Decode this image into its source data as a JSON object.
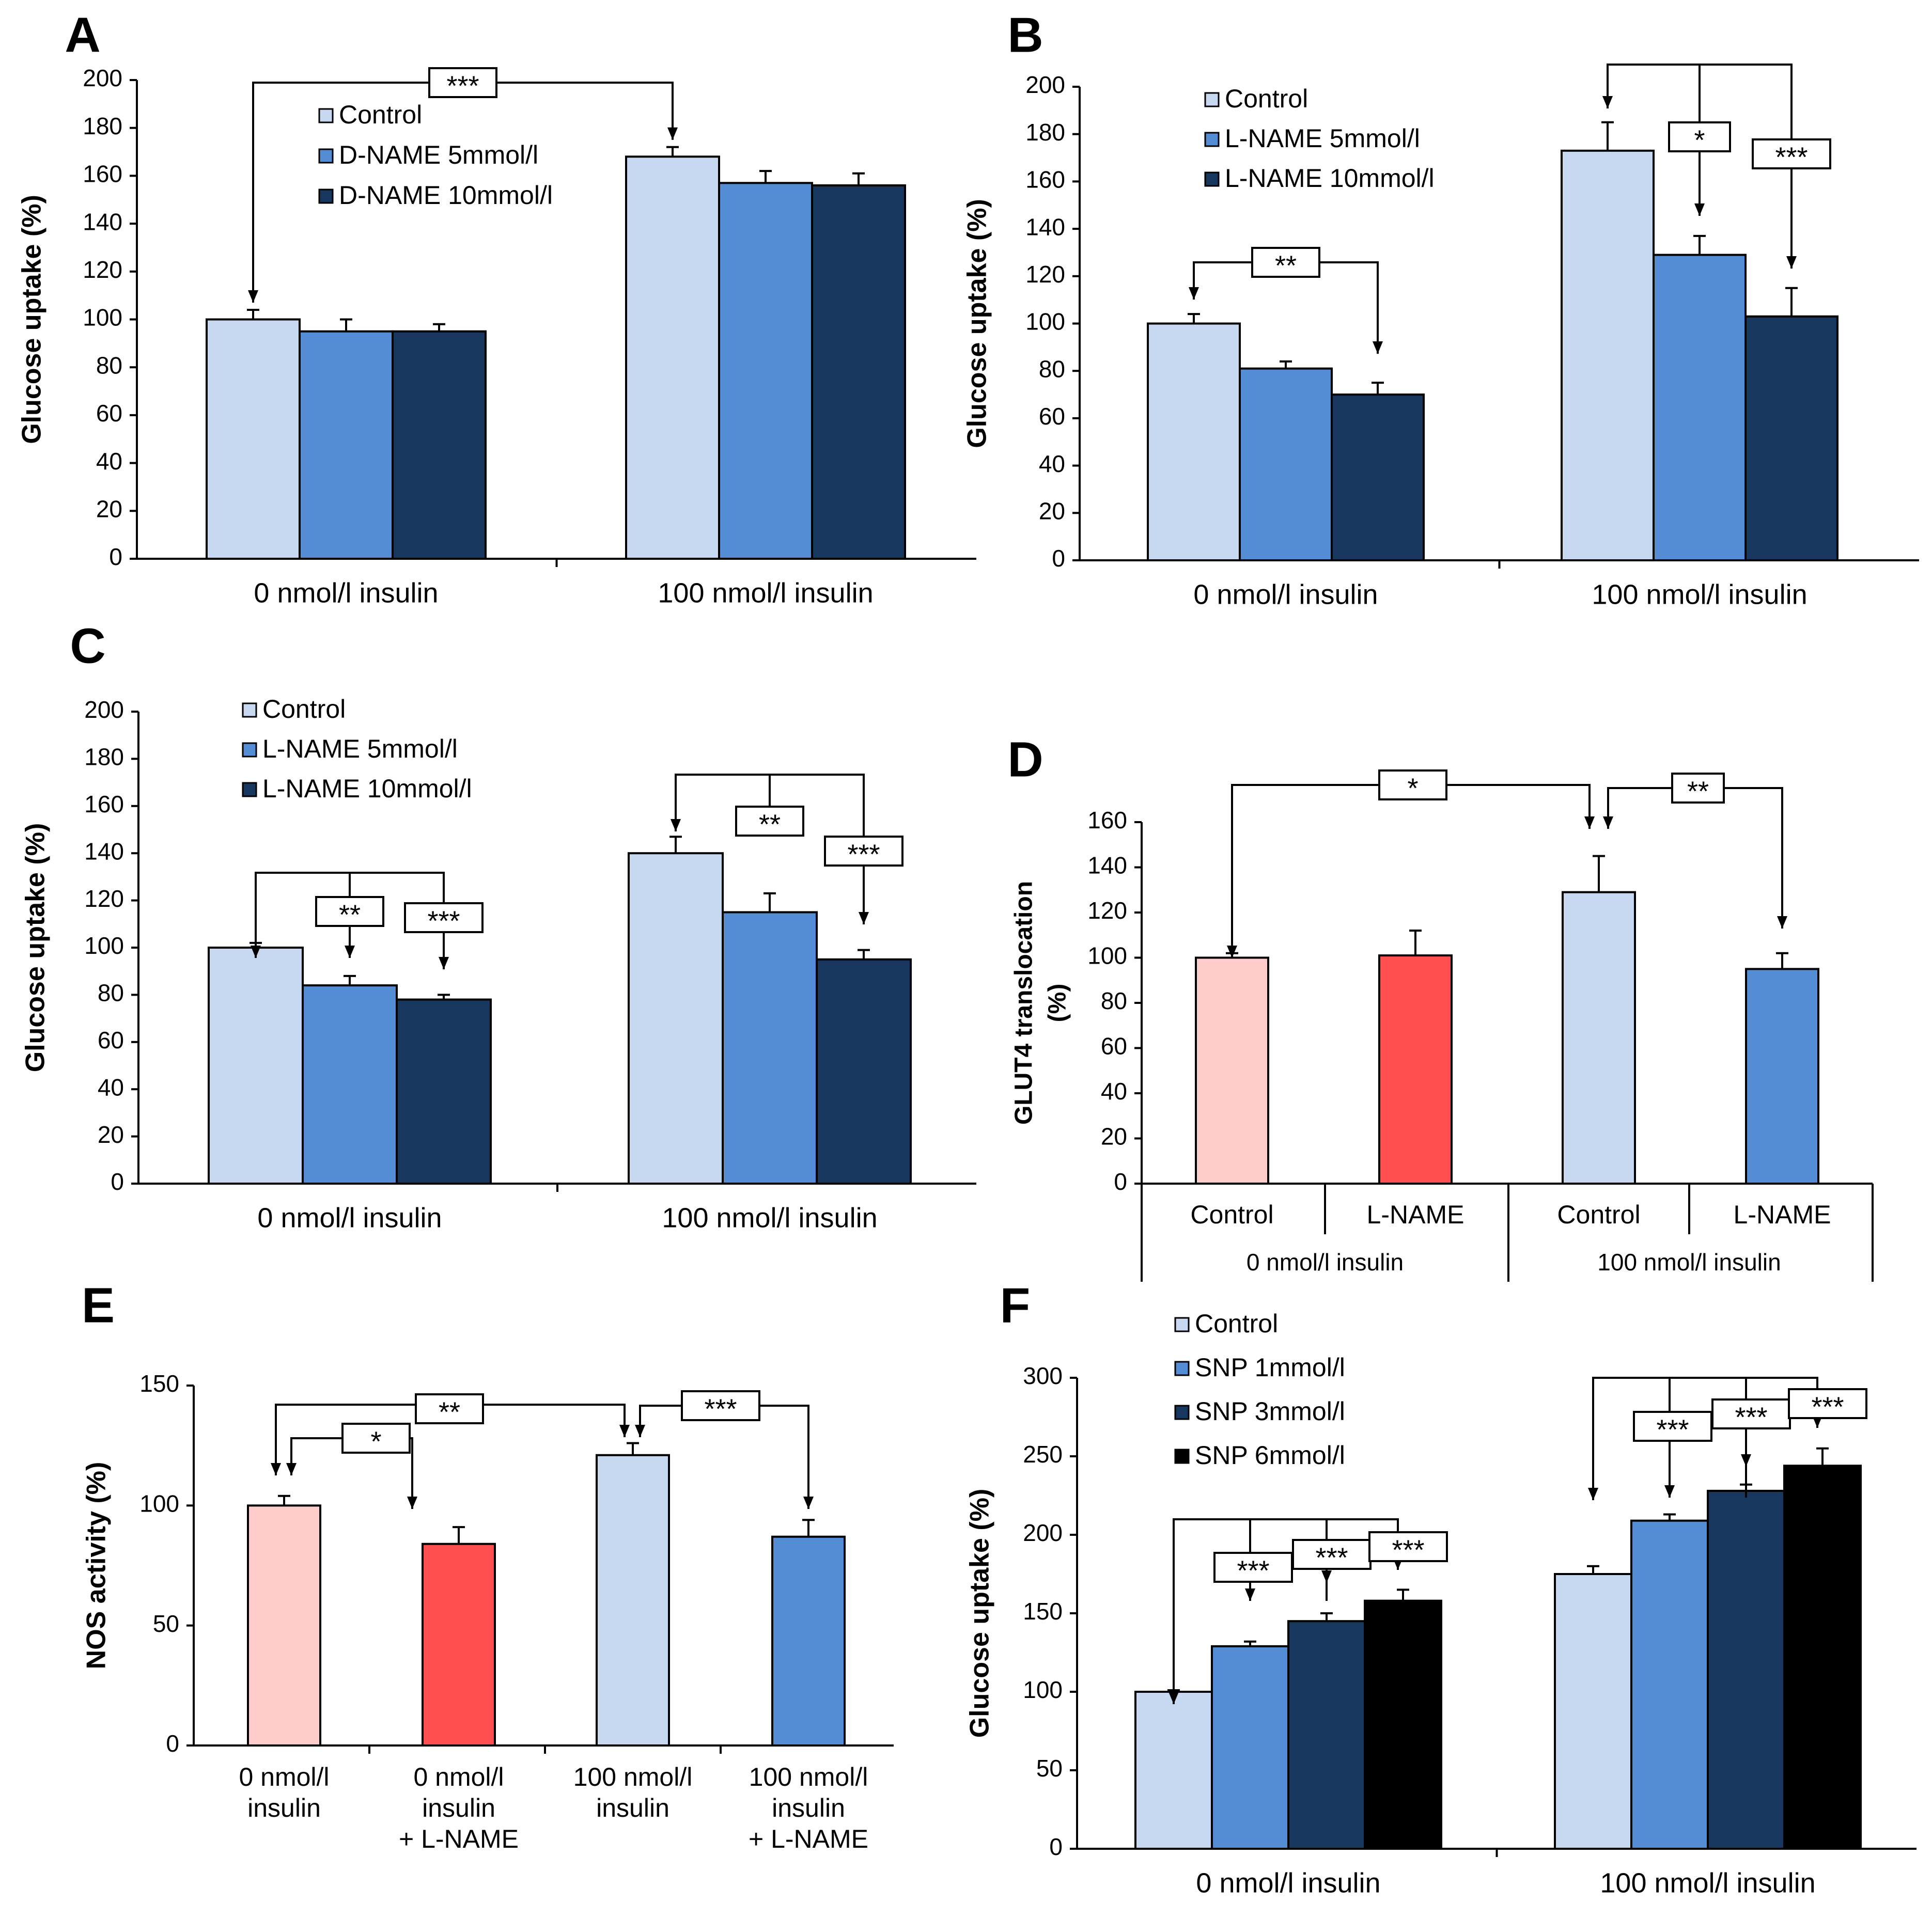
{
  "figure": {
    "panel_labels": [
      "A",
      "B",
      "C",
      "D",
      "E",
      "F"
    ],
    "colors": {
      "control": "#c6d9f1",
      "mid_blue": "#548dd4",
      "dark_navy": "#17375e",
      "black": "#000000",
      "pink": "#ffcccc",
      "red": "#ff4f4f"
    }
  },
  "chart_data": [
    {
      "panel": "A",
      "type": "bar",
      "ylabel": "Glucose uptake (%)",
      "ylim": [
        0,
        200
      ],
      "yticks": [
        0,
        20,
        40,
        60,
        80,
        100,
        120,
        140,
        160,
        180,
        200
      ],
      "categories": [
        "0 nmol/l insulin",
        "100 nmol/l insulin"
      ],
      "series": [
        {
          "name": "Control",
          "color": "#c6d9f1",
          "values": [
            100,
            168
          ],
          "errors": [
            4,
            4
          ]
        },
        {
          "name": "D-NAME 5mmol/l",
          "color": "#548dd4",
          "values": [
            95,
            157
          ],
          "errors": [
            5,
            5
          ]
        },
        {
          "name": "D-NAME 10mmol/l",
          "color": "#17375e",
          "values": [
            95,
            156
          ],
          "errors": [
            3,
            5
          ]
        }
      ],
      "annotations": [
        "***"
      ]
    },
    {
      "panel": "B",
      "type": "bar",
      "ylabel": "Glucose uptake (%)",
      "ylim": [
        0,
        200
      ],
      "yticks": [
        0,
        20,
        40,
        60,
        80,
        100,
        120,
        140,
        160,
        180,
        200
      ],
      "categories": [
        "0 nmol/l insulin",
        "100 nmol/l insulin"
      ],
      "series": [
        {
          "name": "Control",
          "color": "#c6d9f1",
          "values": [
            100,
            173
          ],
          "errors": [
            4,
            12
          ]
        },
        {
          "name": "L-NAME 5mmol/l",
          "color": "#548dd4",
          "values": [
            81,
            129
          ],
          "errors": [
            3,
            8
          ]
        },
        {
          "name": "L-NAME 10mmol/l",
          "color": "#17375e",
          "values": [
            70,
            103
          ],
          "errors": [
            5,
            12
          ]
        }
      ],
      "annotations": [
        "**",
        "*",
        "***"
      ]
    },
    {
      "panel": "C",
      "type": "bar",
      "ylabel": "Glucose uptake (%)",
      "ylim": [
        0,
        200
      ],
      "yticks": [
        0,
        20,
        40,
        60,
        80,
        100,
        120,
        140,
        160,
        180,
        200
      ],
      "categories": [
        "0 nmol/l insulin",
        "100 nmol/l insulin"
      ],
      "series": [
        {
          "name": "Control",
          "color": "#c6d9f1",
          "values": [
            100,
            140
          ],
          "errors": [
            2,
            7
          ]
        },
        {
          "name": "L-NAME 5mmol/l",
          "color": "#548dd4",
          "values": [
            84,
            115
          ],
          "errors": [
            4,
            8
          ]
        },
        {
          "name": "L-NAME 10mmol/l",
          "color": "#17375e",
          "values": [
            78,
            95
          ],
          "errors": [
            2,
            4
          ]
        }
      ],
      "annotations": [
        "**",
        "***",
        "**",
        "***"
      ]
    },
    {
      "panel": "D",
      "type": "bar",
      "ylabel": "GLUT4 translocation (%)",
      "ylim": [
        0,
        160
      ],
      "yticks": [
        0,
        20,
        40,
        60,
        80,
        100,
        120,
        140,
        160
      ],
      "categories": [
        "Control",
        "L-NAME",
        "Control",
        "L-NAME"
      ],
      "groups": [
        "0 nmol/l insulin",
        "100 nmol/l insulin"
      ],
      "values": [
        100,
        101,
        129,
        95
      ],
      "errors": [
        2,
        11,
        16,
        7
      ],
      "colors": [
        "#ffcccc",
        "#ff4f4f",
        "#c6d9f1",
        "#548dd4"
      ],
      "annotations": [
        "*",
        "**"
      ]
    },
    {
      "panel": "E",
      "type": "bar",
      "ylabel": "NOS activity (%)",
      "ylim": [
        0,
        150
      ],
      "yticks": [
        0,
        50,
        100,
        150
      ],
      "categories": [
        [
          "0 nmol/l",
          "insulin"
        ],
        [
          "0 nmol/l",
          "insulin",
          "+ L-NAME"
        ],
        [
          "100 nmol/l",
          "insulin"
        ],
        [
          "100 nmol/l",
          "insulin",
          "+ L-NAME"
        ]
      ],
      "values": [
        100,
        84,
        121,
        87
      ],
      "errors": [
        4,
        7,
        5,
        7
      ],
      "colors": [
        "#ffcccc",
        "#ff4f4f",
        "#c6d9f1",
        "#548dd4"
      ],
      "annotations": [
        "**",
        "*",
        "***"
      ]
    },
    {
      "panel": "F",
      "type": "bar",
      "ylabel": "Glucose uptake (%)",
      "ylim": [
        0,
        300
      ],
      "yticks": [
        0,
        50,
        100,
        150,
        200,
        250,
        300
      ],
      "categories": [
        "0 nmol/l insulin",
        "100 nmol/l insulin"
      ],
      "series": [
        {
          "name": "Control",
          "color": "#c6d9f1",
          "values": [
            100,
            175
          ],
          "errors": [
            1,
            5
          ]
        },
        {
          "name": "SNP 1mmol/l",
          "color": "#548dd4",
          "values": [
            129,
            209
          ],
          "errors": [
            3,
            4
          ]
        },
        {
          "name": "SNP 3mmol/l",
          "color": "#17375e",
          "values": [
            145,
            228
          ],
          "errors": [
            5,
            4
          ]
        },
        {
          "name": "SNP 6mmol/l",
          "color": "#000000",
          "values": [
            158,
            244
          ],
          "errors": [
            7,
            11
          ]
        }
      ],
      "annotations": [
        "***",
        "***",
        "***",
        "***",
        "***",
        "***"
      ]
    }
  ]
}
